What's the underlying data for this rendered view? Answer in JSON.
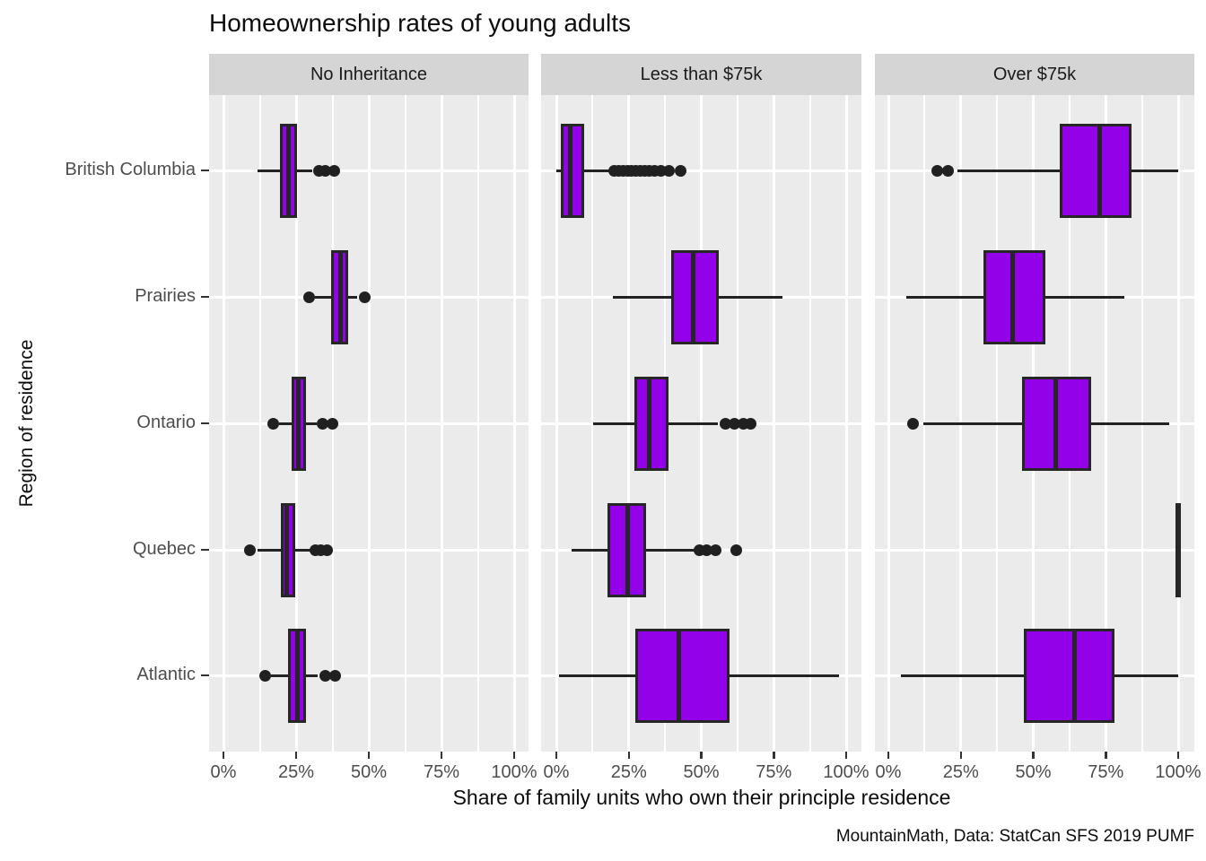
{
  "chart_data": {
    "type": "boxplot",
    "orientation": "horizontal",
    "title": "Homeownership rates of young adults",
    "xlabel": "Share of family units who own their principle residence",
    "ylabel": "Region of residence",
    "caption": "MountainMath, Data: StatCan SFS 2019 PUMF",
    "facets": [
      "No Inheritance",
      "Less than $75k",
      "Over $75k"
    ],
    "categories": [
      "British Columbia",
      "Prairies",
      "Ontario",
      "Quebec",
      "Atlantic"
    ],
    "x_tick_labels": [
      "0%",
      "25%",
      "50%",
      "75%",
      "100%"
    ],
    "x_tick_values": [
      0,
      25,
      50,
      75,
      100
    ],
    "x_minor_values": [
      12.5,
      37.5,
      62.5,
      87.5
    ],
    "xlim": [
      0,
      100
    ],
    "grid": true,
    "colors": {
      "box_fill": "#9301e8",
      "box_stroke": "#262626",
      "outlier": "#202020",
      "panel_bg": "#ebebeb",
      "strip_bg": "#d5d5d5",
      "grid": "#ffffff",
      "tick_text": "#4d4d4d",
      "text": "#0d0d0d"
    },
    "series": [
      {
        "facet": "No Inheritance",
        "boxes": [
          {
            "region": "British Columbia",
            "whisker_low": 11.8,
            "q1": 19.4,
            "median": 22.5,
            "q3": 25.2,
            "whisker_high": 30.7,
            "outliers": [
              33,
              35,
              38
            ]
          },
          {
            "region": "Prairies",
            "whisker_low": 31.5,
            "q1": 37.1,
            "median": 40.4,
            "q3": 43.0,
            "whisker_high": 46.0,
            "outliers": [
              29.5,
              48.5
            ]
          },
          {
            "region": "Ontario",
            "whisker_low": 19.0,
            "q1": 23.4,
            "median": 25.7,
            "q3": 28.5,
            "whisker_high": 32.0,
            "outliers": [
              17.0,
              34.0,
              37.5
            ]
          },
          {
            "region": "Quebec",
            "whisker_low": 11.7,
            "q1": 19.6,
            "median": 21.8,
            "q3": 24.7,
            "whisker_high": 30.4,
            "outliers": [
              9.0,
              31.5,
              33.5,
              35.5
            ]
          },
          {
            "region": "Atlantic",
            "whisker_low": 16.4,
            "q1": 22.3,
            "median": 25.4,
            "q3": 28.5,
            "whisker_high": 32.5,
            "outliers": [
              14.3,
              35.0,
              38.5
            ]
          }
        ]
      },
      {
        "facet": "Less than $75k",
        "boxes": [
          {
            "region": "British Columbia",
            "whisker_low": 0.0,
            "q1": 1.5,
            "median": 4.7,
            "q3": 9.7,
            "whisker_high": 19.0,
            "outliers": [
              20,
              21.5,
              23,
              24.5,
              26,
              27.5,
              29,
              30.5,
              32,
              34,
              36,
              39,
              43
            ]
          },
          {
            "region": "Prairies",
            "whisker_low": 19.6,
            "q1": 39.7,
            "median": 47.2,
            "q3": 56.0,
            "whisker_high": 78.0,
            "outliers": []
          },
          {
            "region": "Ontario",
            "whisker_low": 12.6,
            "q1": 27.0,
            "median": 32.0,
            "q3": 38.7,
            "whisker_high": 55.6,
            "outliers": [
              58.5,
              61.5,
              64.5,
              67.0
            ]
          },
          {
            "region": "Quebec",
            "whisker_low": 5.3,
            "q1": 17.7,
            "median": 24.5,
            "q3": 30.9,
            "whisker_high": 47.8,
            "outliers": [
              49.5,
              52.0,
              55.0,
              62.0
            ]
          },
          {
            "region": "Atlantic",
            "whisker_low": 0.8,
            "q1": 27.2,
            "median": 42.3,
            "q3": 59.9,
            "whisker_high": 97.5,
            "outliers": []
          }
        ]
      },
      {
        "facet": "Over $75k",
        "boxes": [
          {
            "region": "British Columbia",
            "whisker_low": 23.8,
            "q1": 59.0,
            "median": 72.9,
            "q3": 84.0,
            "whisker_high": 100.0,
            "outliers": [
              17.0,
              20.5
            ]
          },
          {
            "region": "Prairies",
            "whisker_low": 6.3,
            "q1": 32.9,
            "median": 42.9,
            "q3": 54.1,
            "whisker_high": 81.5,
            "outliers": []
          },
          {
            "region": "Ontario",
            "whisker_low": 12.0,
            "q1": 46.2,
            "median": 57.7,
            "q3": 70.1,
            "whisker_high": 96.9,
            "outliers": [
              8.6
            ]
          },
          {
            "region": "Quebec",
            "whisker_low": 100.0,
            "q1": 100.0,
            "median": 100.0,
            "q3": 100.0,
            "whisker_high": 100.0,
            "outliers": []
          },
          {
            "region": "Atlantic",
            "whisker_low": 4.2,
            "q1": 46.8,
            "median": 64.2,
            "q3": 78.1,
            "whisker_high": 100.0,
            "outliers": []
          }
        ]
      }
    ]
  }
}
